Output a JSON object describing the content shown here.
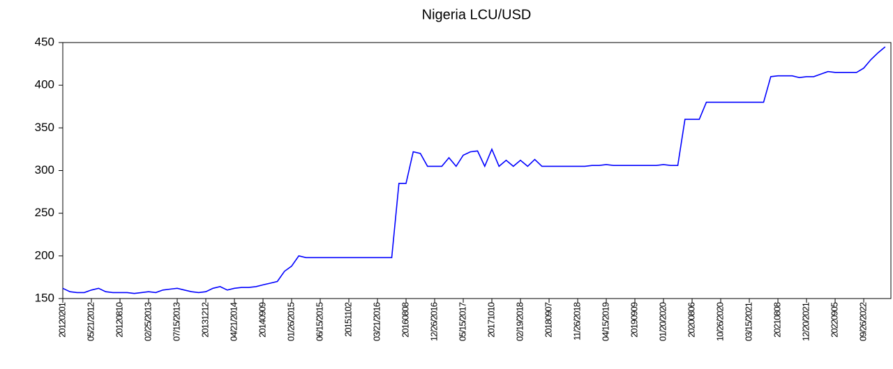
{
  "chart_data": {
    "type": "line",
    "title": "Nigeria LCU/USD",
    "categories": [
      "20120201",
      null,
      null,
      null,
      "05/21/2012",
      null,
      null,
      null,
      "20120810",
      null,
      null,
      null,
      "02/25/2013",
      null,
      null,
      null,
      "07/15/2013",
      null,
      null,
      null,
      "20131212",
      null,
      null,
      null,
      "04/21/2014",
      null,
      null,
      null,
      "20140909",
      null,
      null,
      null,
      "01/26/2015",
      null,
      null,
      null,
      "06/15/2015",
      null,
      null,
      null,
      "20151102",
      null,
      null,
      null,
      "03/21/2016",
      null,
      null,
      null,
      "20160808",
      null,
      null,
      null,
      "12/26/2016",
      null,
      null,
      null,
      "05/15/2017",
      null,
      null,
      null,
      "20171010",
      null,
      null,
      null,
      "02/19/2018",
      null,
      null,
      null,
      "20180907",
      null,
      null,
      null,
      "11/26/2018",
      null,
      null,
      null,
      "04/15/2019",
      null,
      null,
      null,
      "20190909",
      null,
      null,
      null,
      "01/20/2020",
      null,
      null,
      null,
      "20200806",
      null,
      null,
      null,
      "10/26/2020",
      null,
      null,
      null,
      "03/15/2021",
      null,
      null,
      null,
      "20210808",
      null,
      null,
      null,
      "12/20/2021",
      null,
      null,
      null,
      "20220905",
      null,
      null,
      null,
      "09/26/2022",
      null,
      null,
      null
    ],
    "series": [
      {
        "name": "LCU/USD",
        "color": "#0000ff",
        "values": [
          162,
          158,
          157,
          157,
          160,
          162,
          158,
          157,
          157,
          157,
          156,
          157,
          158,
          157,
          160,
          161,
          162,
          160,
          158,
          157,
          158,
          162,
          164,
          160,
          162,
          163,
          163,
          164,
          166,
          168,
          170,
          182,
          188,
          200,
          198,
          198,
          198,
          198,
          198,
          198,
          198,
          198,
          198,
          198,
          198,
          198,
          198,
          285,
          285,
          322,
          320,
          305,
          305,
          305,
          315,
          305,
          318,
          322,
          323,
          305,
          325,
          305,
          312,
          305,
          312,
          305,
          313,
          305,
          305,
          305,
          305,
          305,
          305,
          305,
          306,
          306,
          307,
          306,
          306,
          306,
          306,
          306,
          306,
          306,
          307,
          306,
          306,
          360,
          360,
          360,
          380,
          380,
          380,
          380,
          380,
          380,
          380,
          380,
          380,
          410,
          411,
          411,
          411,
          409,
          410,
          410,
          413,
          416,
          415,
          415,
          415,
          415,
          420,
          430,
          438,
          445
        ]
      }
    ],
    "ylim": [
      150,
      450
    ],
    "yticks": [
      150,
      200,
      250,
      300,
      350,
      400,
      450
    ]
  }
}
